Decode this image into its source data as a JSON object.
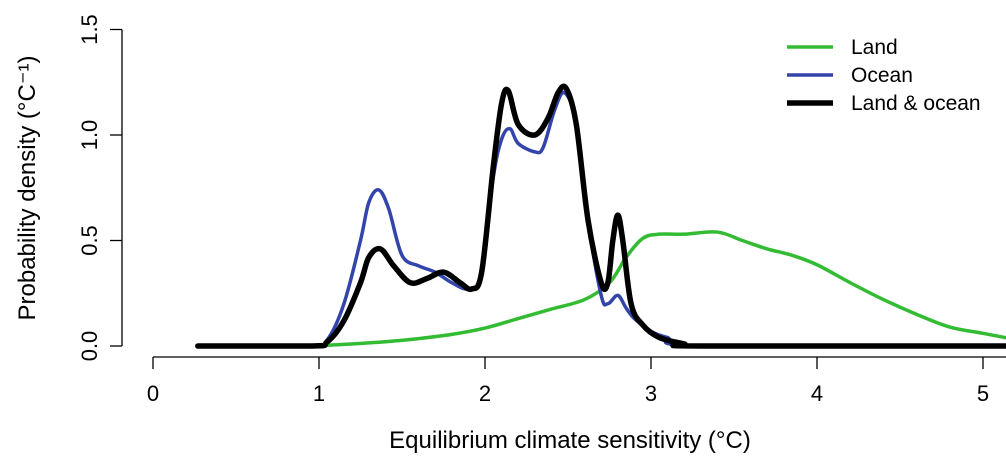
{
  "chart_data": {
    "type": "line",
    "title": "",
    "xlabel": "Equilibrium climate sensitivity (°C)",
    "ylabel": "Probability density (°C⁻¹)",
    "xlim": [
      0,
      5.2
    ],
    "ylim": [
      0,
      1.5
    ],
    "x_ticks": [
      "0",
      "1",
      "2",
      "3",
      "4",
      "5"
    ],
    "y_ticks": [
      "0.0",
      "0.5",
      "1.0",
      "1.5"
    ],
    "grid": false,
    "legend_position": "top-right",
    "series": [
      {
        "name": "Land",
        "color": "#33bb33",
        "width": 3.5,
        "x": [
          0.27,
          0.8,
          1.0,
          1.2,
          1.4,
          1.6,
          1.8,
          2.0,
          2.2,
          2.4,
          2.6,
          2.75,
          2.85,
          2.95,
          3.05,
          3.2,
          3.4,
          3.55,
          3.7,
          3.85,
          4.0,
          4.2,
          4.4,
          4.6,
          4.8,
          5.0,
          5.2
        ],
        "y": [
          0.0,
          0.0,
          0.002,
          0.01,
          0.02,
          0.035,
          0.055,
          0.085,
          0.13,
          0.175,
          0.22,
          0.3,
          0.42,
          0.51,
          0.53,
          0.53,
          0.54,
          0.5,
          0.46,
          0.43,
          0.385,
          0.3,
          0.22,
          0.15,
          0.09,
          0.06,
          0.03
        ]
      },
      {
        "name": "Ocean",
        "color": "#3344aa",
        "width": 3.5,
        "x": [
          0.27,
          0.95,
          1.05,
          1.15,
          1.25,
          1.3,
          1.36,
          1.42,
          1.5,
          1.6,
          1.7,
          1.8,
          1.9,
          1.97,
          2.05,
          2.1,
          2.15,
          2.2,
          2.3,
          2.35,
          2.42,
          2.48,
          2.55,
          2.62,
          2.7,
          2.74,
          2.8,
          2.85,
          2.9,
          3.0,
          3.1,
          3.3,
          5.2
        ],
        "y": [
          0.0,
          0.0,
          0.03,
          0.2,
          0.5,
          0.68,
          0.74,
          0.65,
          0.43,
          0.38,
          0.35,
          0.3,
          0.27,
          0.33,
          0.8,
          0.98,
          1.03,
          0.96,
          0.92,
          0.94,
          1.12,
          1.2,
          1.05,
          0.6,
          0.24,
          0.2,
          0.24,
          0.18,
          0.13,
          0.07,
          0.04,
          0.0,
          0.0
        ]
      },
      {
        "name": "Land & ocean",
        "color": "#000000",
        "width": 5.5,
        "x": [
          0.27,
          0.95,
          1.05,
          1.15,
          1.25,
          1.3,
          1.37,
          1.45,
          1.55,
          1.65,
          1.75,
          1.85,
          1.92,
          1.98,
          2.05,
          2.1,
          2.14,
          2.2,
          2.3,
          2.38,
          2.44,
          2.49,
          2.55,
          2.62,
          2.7,
          2.74,
          2.77,
          2.8,
          2.83,
          2.88,
          2.95,
          3.05,
          3.2,
          3.3,
          5.2
        ],
        "y": [
          0.0,
          0.0,
          0.02,
          0.12,
          0.3,
          0.42,
          0.46,
          0.38,
          0.3,
          0.32,
          0.35,
          0.3,
          0.27,
          0.35,
          0.85,
          1.15,
          1.21,
          1.05,
          1.0,
          1.08,
          1.2,
          1.22,
          1.05,
          0.6,
          0.3,
          0.3,
          0.5,
          0.62,
          0.5,
          0.2,
          0.1,
          0.04,
          0.01,
          0.0,
          0.0
        ]
      }
    ]
  }
}
